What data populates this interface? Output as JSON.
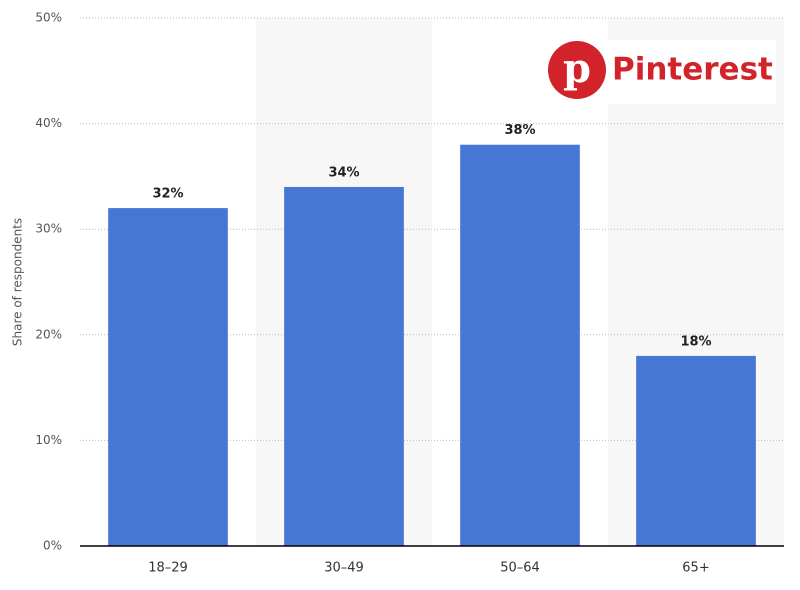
{
  "chart_data": {
    "type": "bar",
    "categories": [
      "18–29",
      "30–49",
      "50–64",
      "65+"
    ],
    "values": [
      32,
      34,
      38,
      18
    ],
    "value_labels": [
      "32%",
      "34%",
      "38%",
      "18%"
    ],
    "color": "#4677d5",
    "y_label": "Share of respondents",
    "ylim": [
      0,
      50
    ],
    "yticks": [
      {
        "value": 0,
        "label": "0%"
      },
      {
        "value": 10,
        "label": "10%"
      },
      {
        "value": 20,
        "label": "20%"
      },
      {
        "value": 30,
        "label": "30%"
      },
      {
        "value": 40,
        "label": "40%"
      },
      {
        "value": 50,
        "label": "50%"
      }
    ],
    "grid": true,
    "annotations": [
      "Pinterest"
    ]
  }
}
